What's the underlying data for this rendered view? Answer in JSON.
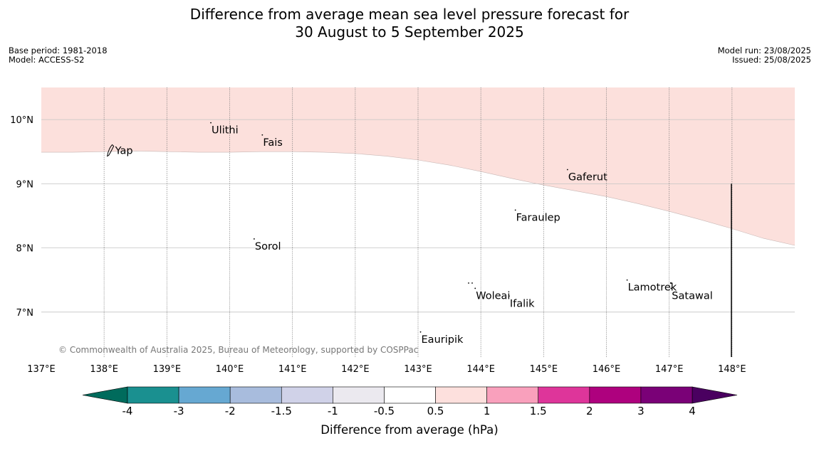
{
  "title": {
    "line1": "Difference from average mean sea level pressure forecast for",
    "line2": "30 August to 5 September 2025"
  },
  "meta_left": {
    "base_period": "Base period: 1981-2018",
    "model": "Model: ACCESS-S2"
  },
  "meta_right": {
    "model_run": "Model run: 23/08/2025",
    "issued": "Issued: 25/08/2025"
  },
  "map": {
    "lon_range": [
      137,
      149
    ],
    "lat_range": [
      6.3,
      10.5
    ],
    "lon_ticks": [
      137,
      138,
      139,
      140,
      141,
      142,
      143,
      144,
      145,
      146,
      147,
      148
    ],
    "lon_tick_labels": [
      "137°E",
      "138°E",
      "139°E",
      "140°E",
      "141°E",
      "142°E",
      "143°E",
      "144°E",
      "145°E",
      "146°E",
      "147°E",
      "148°E"
    ],
    "lat_ticks": [
      10,
      9,
      8,
      7
    ],
    "lat_tick_labels": [
      "10°N",
      "9°N",
      "8°N",
      "7°N"
    ],
    "positive_anomaly_color": "#fce0dc",
    "anomaly_band": "0.5 to 1",
    "anomaly_boundary": [
      [
        137.0,
        9.49
      ],
      [
        137.5,
        9.49
      ],
      [
        138.0,
        9.5
      ],
      [
        138.5,
        9.51
      ],
      [
        139.0,
        9.5
      ],
      [
        139.5,
        9.49
      ],
      [
        140.0,
        9.49
      ],
      [
        140.5,
        9.5
      ],
      [
        141.0,
        9.5
      ],
      [
        141.5,
        9.49
      ],
      [
        142.0,
        9.47
      ],
      [
        142.5,
        9.43
      ],
      [
        143.0,
        9.37
      ],
      [
        143.5,
        9.29
      ],
      [
        144.0,
        9.19
      ],
      [
        144.5,
        9.08
      ],
      [
        145.0,
        8.98
      ],
      [
        145.5,
        8.89
      ],
      [
        146.0,
        8.8
      ],
      [
        146.5,
        8.69
      ],
      [
        147.0,
        8.57
      ],
      [
        147.5,
        8.44
      ],
      [
        148.0,
        8.3
      ],
      [
        148.5,
        8.15
      ],
      [
        149.0,
        8.04
      ]
    ],
    "places": [
      {
        "name": "Yap",
        "lon": 138.13,
        "lat": 9.53
      },
      {
        "name": "Ulithi",
        "lon": 139.7,
        "lat": 9.95
      },
      {
        "name": "Fais",
        "lon": 140.52,
        "lat": 9.76
      },
      {
        "name": "Gaferut",
        "lon": 145.38,
        "lat": 9.22
      },
      {
        "name": "Faraulep",
        "lon": 144.55,
        "lat": 8.59
      },
      {
        "name": "Sorol",
        "lon": 140.39,
        "lat": 8.14
      },
      {
        "name": "Woleai",
        "lon": 143.91,
        "lat": 7.37
      },
      {
        "name": "Ifalik",
        "lon": 144.45,
        "lat": 7.25
      },
      {
        "name": "Lamotrek",
        "lon": 146.33,
        "lat": 7.5
      },
      {
        "name": "Satawal",
        "lon": 147.03,
        "lat": 7.37
      },
      {
        "name": "Eauripik",
        "lon": 143.04,
        "lat": 6.69
      }
    ],
    "copyright": "© Commonwealth of Australia 2025, Bureau of Meteorology, supported by COSPPac"
  },
  "colorbar": {
    "title": "Difference from average (hPa)",
    "tick_labels": [
      "-4",
      "-3",
      "-2",
      "-1.5",
      "-1",
      "-0.5",
      "0.5",
      "1",
      "1.5",
      "2",
      "3",
      "4"
    ],
    "low_extend_color": "#006b5c",
    "high_extend_color": "#4a0060",
    "colors": [
      "#1a9090",
      "#66a8d2",
      "#a8bcdd",
      "#d0d2e8",
      "#ebe9ef",
      "#ffffff",
      "#fde0dd",
      "#f9a0bc",
      "#de359a",
      "#ae017e",
      "#7a0177"
    ]
  }
}
